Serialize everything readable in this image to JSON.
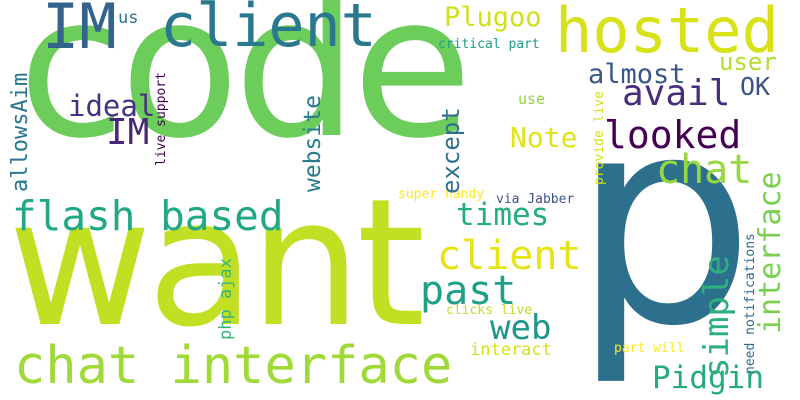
{
  "words": [
    {
      "id": "code",
      "text": "code",
      "color": "#6ccd5a"
    },
    {
      "id": "want",
      "text": "want",
      "color": "#c2df23"
    },
    {
      "id": "p",
      "text": "p",
      "color": "#2d708e"
    },
    {
      "id": "hosted",
      "text": "hosted",
      "color": "#d8e219"
    },
    {
      "id": "client-top",
      "text": "client",
      "color": "#2a788e"
    },
    {
      "id": "IM-top",
      "text": "IM",
      "color": "#33638d"
    },
    {
      "id": "chat-interface",
      "text": "chat interface",
      "color": "#a0da39"
    },
    {
      "id": "flash-based",
      "text": "flash based",
      "color": "#22a884"
    },
    {
      "id": "avail",
      "text": "avail",
      "color": "#472d7b"
    },
    {
      "id": "looked",
      "text": "looked",
      "color": "#440154"
    },
    {
      "id": "chat",
      "text": "chat",
      "color": "#95d840"
    },
    {
      "id": "interface-vertical",
      "text": "interface",
      "color": "#7ad151"
    },
    {
      "id": "client-mid",
      "text": "client",
      "color": "#e5e419"
    },
    {
      "id": "times",
      "text": "times",
      "color": "#25ac82"
    },
    {
      "id": "past",
      "text": "past",
      "color": "#1fa187"
    },
    {
      "id": "web",
      "text": "web",
      "color": "#1f968b"
    },
    {
      "id": "simple",
      "text": "simple",
      "color": "#2cb17e"
    },
    {
      "id": "Pidgin",
      "text": "Pidgin",
      "color": "#25ab82"
    },
    {
      "id": "IM-mid",
      "text": "IM",
      "color": "#482878"
    },
    {
      "id": "ideal",
      "text": "ideal",
      "color": "#46337f"
    },
    {
      "id": "allowsAim",
      "text": "allowsAim",
      "color": "#2a768e"
    },
    {
      "id": "website",
      "text": "website",
      "color": "#297b8e"
    },
    {
      "id": "except",
      "text": "except",
      "color": "#2d718e"
    },
    {
      "id": "Plugoo",
      "text": "Plugoo",
      "color": "#d0e11c"
    },
    {
      "id": "almost",
      "text": "almost",
      "color": "#39568c"
    },
    {
      "id": "user",
      "text": "user",
      "color": "#b2dd2d"
    },
    {
      "id": "OK",
      "text": "OK",
      "color": "#3b528b"
    },
    {
      "id": "Note",
      "text": "Note",
      "color": "#e2e418"
    },
    {
      "id": "us",
      "text": "us",
      "color": "#2b758e"
    },
    {
      "id": "critical-part",
      "text": "critical part",
      "color": "#1f9e89"
    },
    {
      "id": "use",
      "text": "use",
      "color": "#8fd744"
    },
    {
      "id": "live-support",
      "text": "live support",
      "color": "#440154"
    },
    {
      "id": "provide-live",
      "text": "provide live",
      "color": "#d2e21b"
    },
    {
      "id": "super-handy",
      "text": "super handy",
      "color": "#fde725"
    },
    {
      "id": "via-Jabber",
      "text": "via Jabber",
      "color": "#3b528b"
    },
    {
      "id": "php-ajax",
      "text": "php ajax",
      "color": "#35b779"
    },
    {
      "id": "need-notifications",
      "text": "need notifications",
      "color": "#31688e"
    },
    {
      "id": "clicks-live",
      "text": "clicks live",
      "color": "#bddf26"
    },
    {
      "id": "interact",
      "text": "interact",
      "color": "#d5e21a"
    },
    {
      "id": "part-will",
      "text": "part will",
      "color": "#fde725"
    }
  ]
}
